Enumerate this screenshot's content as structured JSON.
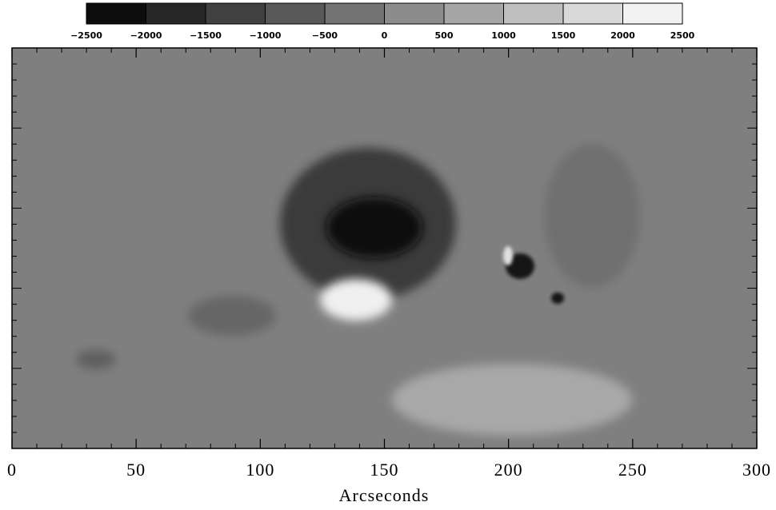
{
  "chart_data": {
    "type": "image",
    "xlabel": "Arcseconds",
    "xlim": [
      0,
      300
    ],
    "xticks": [
      0,
      50,
      100,
      150,
      200,
      250,
      300
    ],
    "colorbar": {
      "lim": [
        -2500,
        2500
      ],
      "ticks": [
        {
          "value": -2500,
          "label": "−2500"
        },
        {
          "value": -2000,
          "label": "−2000"
        },
        {
          "value": -1500,
          "label": "−1500"
        },
        {
          "value": -1000,
          "label": "−1000"
        },
        {
          "value": -500,
          "label": "−500"
        },
        0,
        500,
        1000,
        1500,
        2000,
        2500
      ]
    }
  }
}
